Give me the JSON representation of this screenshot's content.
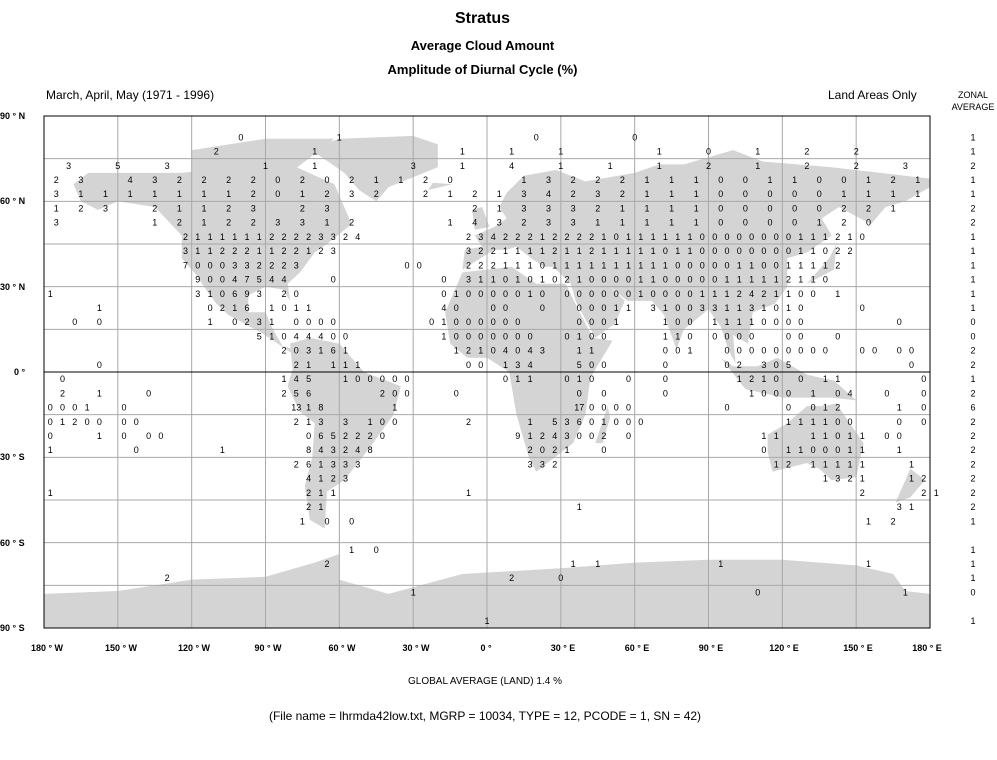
{
  "title": "Stratus",
  "subtitle1": "Average Cloud Amount",
  "subtitle2": "Amplitude of Diurnal Cycle (%)",
  "period": "March, April, May (1971 - 1996)",
  "coverage": "Land Areas Only",
  "zonal_header": [
    "ZONAL",
    "AVERAGE"
  ],
  "lat_labels": [
    "90 ° N",
    "60 ° N",
    "30 ° N",
    "0 °",
    "30 ° S",
    "60 ° S",
    "90 ° S"
  ],
  "lon_labels": [
    "180 ° W",
    "150 ° W",
    "120 ° W",
    "90 ° W",
    "60 ° W",
    "30 ° W",
    "0 °",
    "30 ° E",
    "60 ° E",
    "90 ° E",
    "120 ° E",
    "150 ° E",
    "180 ° E"
  ],
  "global_average": "GLOBAL AVERAGE (LAND)   1.4 %",
  "file_info": "(File name = lhrmda42low.txt, MGRP = 10034, TYPE = 12, PCODE = 1, SN = 42)",
  "colors": {
    "land": "#d4d4d4",
    "grid": "#a8a8a8",
    "equator": "#000000",
    "text": "#000000"
  },
  "map": {
    "projection": "equirectangular",
    "lon_range": [
      -180,
      180
    ],
    "lat_range": [
      -90,
      90
    ],
    "grid_lon_every": 30,
    "grid_lat_every": 15,
    "rows": [
      {
        "lat": 87.5,
        "step": 40,
        "lon0": -180,
        "cells": "",
        "zonal": null
      },
      {
        "lat": 82.5,
        "step": 40,
        "lon0": -180,
        "cells": ". . 0 1 . 0 0 . .",
        "zonal": "1"
      },
      {
        "lat": 77.5,
        "step": 20,
        "lon0": -170,
        "cells": ". . . 2 . 1 . . 1 1 1 . 1 0 1 2 2 .",
        "zonal": "1"
      },
      {
        "lat": 72.5,
        "step": 20,
        "lon0": -170,
        "cells": "3 5 3 . 1 1 . 3 1 4 1 1 1 2 1 2 2 3",
        "zonal": "2"
      },
      {
        "lat": 67.5,
        "step": 10,
        "lon0": -175,
        "cells": "2 3 . 4 3 2 2 2 2 0 2 0 2 1 1 2 0 . . 1 3 2 2 2 1 1 1 0 0 1 1 0 0 1 2 1",
        "zonal": "1"
      },
      {
        "lat": 62.5,
        "step": 10,
        "lon0": -175,
        "cells": "3 1 1 1 1 1 1 1 2 0 1 2 3 2 . 2 1 2 1 3 4 2 3 2 1 1 1 0 0 0 0 0 1 1 1 1",
        "zonal": "1"
      },
      {
        "lat": 57.5,
        "step": 10,
        "lon0": -175,
        "cells": "1 2 3 . 2 1 1 2 3 . 2 3 . . . . . 2 1 3 3 3 2 1 1 1 1 0 0 0 0 0 2 2 1 .",
        "zonal": "2"
      },
      {
        "lat": 52.5,
        "step": 10,
        "lon0": -175,
        "cells": "3 . . . 1 2 1 2 2 3 3 1 2 . . . 1 4 3 2 3 3 1 1 1 1 1 0 0 0 0 1 2 0 . .",
        "zonal": "2"
      },
      {
        "lat": 47.5,
        "step": 5,
        "lon0": -177.5,
        "cells": ". . . . . . . . . . . 2 1 1 1 1 1 1 2 2 2 2 3 3 2 4 . . . . . . . . 2 3 4 2 2 2 1 2 2 2 2 1 0 1 1 1 1 1 1 0 0 0 0 0 0 0 0 1 1 1 2 1 0 . . . . .",
        "zonal": "1"
      },
      {
        "lat": 42.5,
        "step": 5,
        "lon0": -177.5,
        "cells": ". . . . . . . . . . . 3 1 1 2 2 2 1 1 2 2 1 2 3 . . . . . . . . . . 3 2 2 1 1 1 1 2 1 1 2 1 1 1 1 1 0 1 1 0 0 0 0 0 0 0 0 1 1 0 2 2 . . . . . .",
        "zonal": "1"
      },
      {
        "lat": 37.5,
        "step": 5,
        "lon0": -177.5,
        "cells": ". . . . . . . . . . . 7 0 0 0 3 3 2 2 2 3 . . . . . . . . 0 0 . . . 2 2 2 1 1 1 0 1 1 1 1 1 1 1 1 1 1 0 0 0 0 0 1 1 0 0 1 1 1 1 2 . . . . . . .",
        "zonal": "1"
      },
      {
        "lat": 32.5,
        "step": 5,
        "lon0": -177.5,
        "cells": ". . . . . . . . . . . . 9 0 0 4 7 5 4 4 . . . 0 . . . . . . . . 0 . 3 1 1 0 1 0 1 0 2 1 0 0 0 0 1 1 0 0 0 0 0 1 1 1 1 1 2 1 1 0 . . . . . . . .",
        "zonal": "1"
      },
      {
        "lat": 27.5,
        "step": 5,
        "lon0": -177.5,
        "cells": "1 . . . . . . . . . . . 3 1 0 6 9 3 . 2 0 . . . . . . . . . . . 0 1 0 0 0 0 0 1 0 . 0 0 0 0 0 0 1 0 0 0 0 1 1 1 2 4 2 1 1 0 0 . 1 . . . . . . .",
        "zonal": "1"
      },
      {
        "lat": 22.5,
        "step": 5,
        "lon0": -177.5,
        "cells": ". . . . 1 . . . . . . . . 0 2 1 6 . 1 0 1 1 . . . . . . . . . . 4 0 . . 0 0 . . 0 . . 0 0 0 1 1 . 3 1 0 0 3 3 1 1 3 1 0 1 0 . . . . 0 . . . . .",
        "zonal": "1"
      },
      {
        "lat": 17.5,
        "step": 5,
        "lon0": -177.5,
        "cells": ". . 0 . 0 . . . . . . . . 1 . 0 2 3 1 . 0 0 0 0 . . . . . . . 0 1 0 0 0 0 0 0 . . . . 0 0 0 1 . . . 1 0 0 . 1 1 1 1 0 0 0 0 . . . . . . . 0 . .",
        "zonal": "0"
      },
      {
        "lat": 12.5,
        "step": 5,
        "lon0": -177.5,
        "cells": ". . . . . . . . . . . . . . . . . 5 1 0 4 4 4 0 0 . . . . . . . 1 0 0 0 0 0 0 0 . . 0 1 0 0 . . . . 1 1 0 . 0 0 0 0 . . 0 0 . . 0 . . . . . . .",
        "zonal": "0"
      },
      {
        "lat": 7.5,
        "step": 5,
        "lon0": -177.5,
        "cells": ". . . . . . . . . . . . . . . . . . . 2 0 3 1 6 1 . . . . . . . . 1 2 1 0 4 0 4 3 . . 1 1 . . . . . 0 0 1 . . 0 0 0 0 0 0 0 0 0 . . 0 0 . 0 0 .",
        "zonal": "2"
      },
      {
        "lat": 2.5,
        "step": 5,
        "lon0": -177.5,
        "cells": ". . . . 0 . . . . . . . . . . . . . . . 2 1 . 1 1 1 . . . . . . . . 0 0 . 1 3 4 . . . 5 0 0 . . . . 0 . . . . 0 2 . 3 0 5 . . . . . . . . . 0 .",
        "zonal": "2"
      },
      {
        "lat": -2.5,
        "step": 5,
        "lon0": -177.5,
        "cells": ". 0 . . . . . . . . . . . . . . . . . 1 4 5 . . 1 0 0 0 0 0 . . . . . . . 0 1 1 . . 0 1 0 . . 0 . . 0 . . . . . 1 2 1 0 . 0 . 1 1 . . . . . . 0",
        "zonal": "1"
      },
      {
        "lat": -7.5,
        "step": 5,
        "lon0": -177.5,
        "cells": ". 2 . . 1 . . . 0 . . . . . . . . . . 2 5 6 . . . . . 2 0 0 . . . 0 . . . . . . . . . 0 . 0 . . . . 0 . . . . . . 1 0 0 0 . 1 . 0 4 . . 0 . . 0",
        "zonal": "2"
      },
      {
        "lat": -12.5,
        "step": 5,
        "lon0": -177.5,
        "cells": "0 0 0 1 . . 0 . . . . . . . . . . . . . 13 1 8 . . . . . 1 . . . . . . . . . . . . . . 17 0 0 0 0 . . . . . . . 0 . . . . 0 . 0 1 2 . . . . 1 . 0",
        "zonal": "6"
      },
      {
        "lat": -17.5,
        "step": 5,
        "lon0": -177.5,
        "cells": "0 1 2 0 0 . 0 0 . . . . . . . . . . . . 2 1 3 . 3 . 1 0 0 . . . . . 2 . . . . 1 . 5 3 6 0 1 0 0 0 . . . . . . . . . . . 1 1 1 1 0 0 . . . 0 . 0",
        "zonal": "2"
      },
      {
        "lat": -22.5,
        "step": 5,
        "lon0": -177.5,
        "cells": "0 . . . 1 . 0 . 0 0 . . . . . . . . . . . 0 6 5 2 2 2 0 . . . . . . . . . . 9 1 2 4 3 0 0 2 . 0 . . . . . . . . . . 1 1 . . 1 1 0 1 1 . 0 0 . .",
        "zonal": "2"
      },
      {
        "lat": -27.5,
        "step": 5,
        "lon0": -177.5,
        "cells": "1 . . . . . . 0 . . . . . . 1 . . . . . . 8 4 3 2 4 8 . . . . . . . . . . . . 2 0 2 1 . . 0 . . . . . . . . . . . . 0 . 1 1 0 0 0 1 1 . . 1 . .",
        "zonal": "2"
      },
      {
        "lat": -32.5,
        "step": 5,
        "lon0": -177.5,
        "cells": ". . . . . . . . . . . . . . . . . . . . 2 6 1 3 3 3 . . . . . . . . . . . . . 3 3 2 . . . . . . . . . . . . . . . . . 1 2 . 1 1 1 1 1 . . . 1 .",
        "zonal": "2"
      },
      {
        "lat": -37.5,
        "step": 5,
        "lon0": -177.5,
        "cells": ". . . . . . . . . . . . . . . . . . . . . 4 1 2 3 . . . . . . . . . . . . . . . . . . . . . . . . . . . . . . . . . . . . . . 1 3 2 1 . . . 1 2",
        "zonal": "2"
      },
      {
        "lat": -42.5,
        "step": 5,
        "lon0": -177.5,
        "cells": "1 . . . . . . . . . . . . . . . . . . . . 2 1 1 . . . . . . . . . . 1 . . . . . . . . . . . . . . . . . . . . . . . . . . . . . . . 2 . . . . 2 1",
        "zonal": "2"
      },
      {
        "lat": -47.5,
        "step": 5,
        "lon0": -177.5,
        "cells": ". . . . . . . . . . . . . . . . . . . . . 2 1 . . . . . . . . . . . . . . . . . . . . 1 . . . . . . . . . . . . . . . . . . . . . . . . . 3 1 .",
        "zonal": "2"
      },
      {
        "lat": -52.5,
        "step": 10,
        "lon0": -175,
        "cells": ". . . . . . . . . . 1 0 0 . . . . . . . . . . . . . . . . . . . . 1 2 .",
        "zonal": "1"
      },
      {
        "lat": -57.5,
        "step": 10,
        "lon0": -175,
        "cells": "",
        "zonal": null
      },
      {
        "lat": -62.5,
        "step": 10,
        "lon0": -175,
        "cells": ". . . . . . . . . . . . 1 0 . . . . . . . . . . . . . . . . . . . . . .",
        "zonal": "1"
      },
      {
        "lat": -67.5,
        "step": 10,
        "lon0": -175,
        "cells": ". . . . . . . . . . . 2 . . . . . . . . . 1 1 . . . . 1 . . . . . 1 . .",
        "zonal": "1"
      },
      {
        "lat": -72.5,
        "step": 20,
        "lon0": -170,
        "cells": ". . 2 . . . . . . 2 0 . . . . . . .",
        "zonal": "1"
      },
      {
        "lat": -77.5,
        "step": 20,
        "lon0": -170,
        "cells": ". . . . . . . 1 . . . . . . 0 . . 1",
        "zonal": "0"
      },
      {
        "lat": -82.5,
        "step": 40,
        "lon0": -180,
        "cells": "",
        "zonal": null
      },
      {
        "lat": -87.5,
        "step": 60,
        "lon0": -180,
        "cells": ". . . 1 . .",
        "zonal": "1"
      }
    ]
  }
}
